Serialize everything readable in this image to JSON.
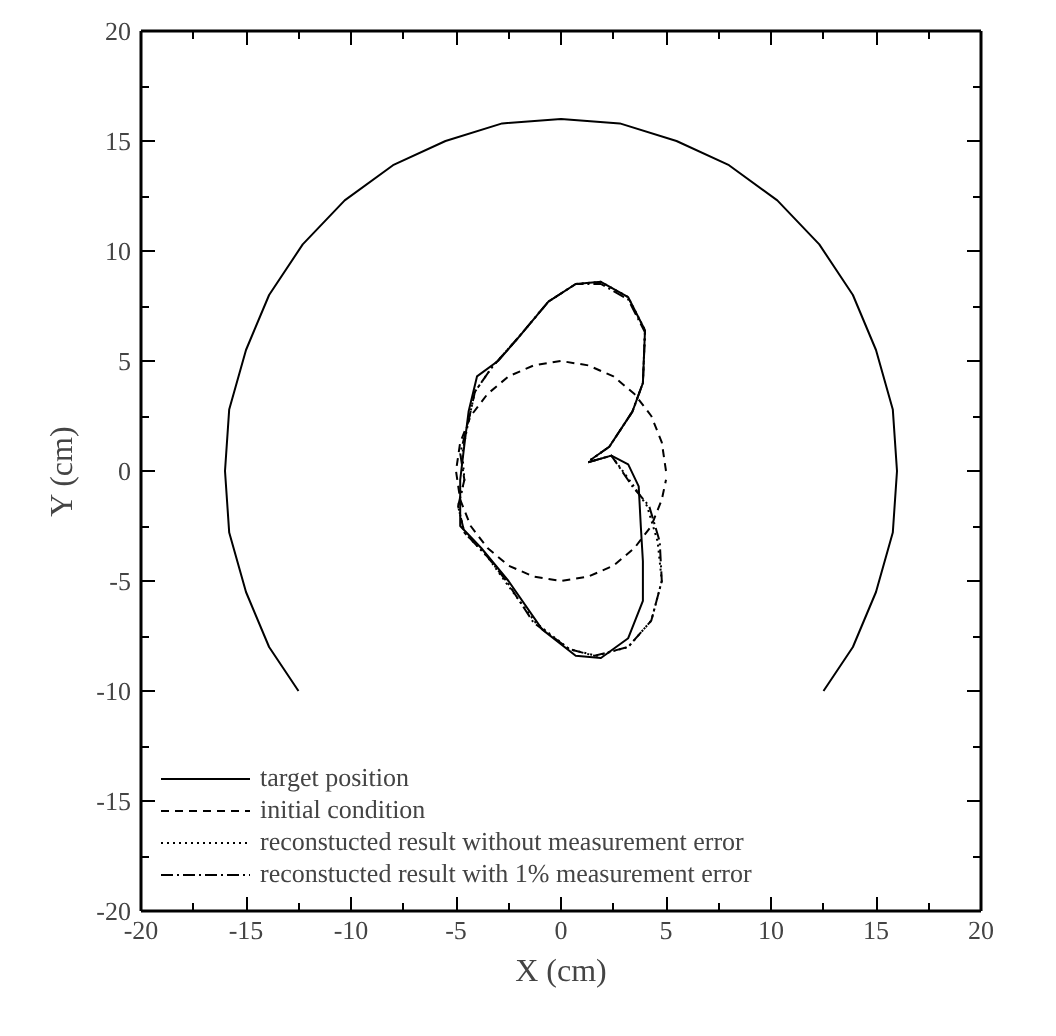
{
  "chart_data": {
    "type": "line",
    "xlabel": "X (cm)",
    "ylabel": "Y (cm)",
    "xlim": [
      -20,
      20
    ],
    "ylim": [
      -20,
      20
    ],
    "xticks": [
      -20,
      -15,
      -10,
      -5,
      0,
      5,
      10,
      15,
      20
    ],
    "yticks": [
      -20,
      -15,
      -10,
      -5,
      0,
      5,
      10,
      15,
      20
    ],
    "grid": false,
    "legend": "bottom left",
    "marker": "none",
    "series": [
      {
        "color": "#000000",
        "line_style": "solid",
        "x": [
          12.5,
          13.9,
          15,
          15.8,
          16,
          15.8,
          15,
          13.9,
          12.3,
          10.3,
          8,
          5.5,
          2.8,
          0,
          -2.8,
          -5.5,
          -8,
          -10.3,
          -12.3,
          -13.9,
          -15,
          -15.8,
          -16,
          -15.8,
          -15,
          -13.9,
          -12.5
        ],
        "values": [
          -10,
          -8,
          -5.5,
          -2.8,
          0,
          2.8,
          5.5,
          8,
          10.3,
          12.3,
          13.9,
          15,
          15.8,
          16,
          15.8,
          15,
          13.9,
          12.3,
          10.3,
          8,
          5.5,
          2.8,
          0,
          -2.8,
          -5.5,
          -8,
          -10
        ]
      },
      {
        "name": "target position",
        "color": "#000000",
        "line_style": "solid",
        "x": [
          1.3,
          2.4,
          3.2,
          3.7,
          3.8,
          3.9,
          3.9,
          3.2,
          1.9,
          0.7,
          -0.9,
          -2.5,
          -3.8,
          -4.8,
          -4.8,
          -4.6,
          -4.4,
          -4,
          -3,
          -2,
          -0.6,
          0.7,
          1.9,
          3.2,
          4,
          3.9,
          3.4,
          2.3,
          1.4
        ],
        "values": [
          0.4,
          0.7,
          0.3,
          -0.7,
          -2.5,
          -4.1,
          -5.9,
          -7.6,
          -8.5,
          -8.4,
          -7.2,
          -5,
          -3.5,
          -2.5,
          -0.4,
          1.2,
          2.7,
          4.3,
          5,
          6.1,
          7.7,
          8.5,
          8.6,
          7.9,
          6.4,
          4,
          2.7,
          1.1,
          0.5
        ]
      },
      {
        "name": "initial condition",
        "color": "#000000",
        "line_style": "dashed",
        "x": [
          5,
          4.8,
          4.3,
          3.5,
          2.5,
          1.3,
          0,
          -1.3,
          -2.5,
          -3.5,
          -4.3,
          -4.8,
          -5,
          -4.8,
          -4.3,
          -3.5,
          -2.5,
          -1.3,
          0,
          1.3,
          2.5,
          3.5,
          4.3,
          4.8,
          5
        ],
        "values": [
          0,
          1.3,
          2.5,
          3.5,
          4.3,
          4.8,
          5,
          4.8,
          4.3,
          3.5,
          2.5,
          1.3,
          0,
          -1.3,
          -2.5,
          -3.5,
          -4.3,
          -4.8,
          -5,
          -4.8,
          -4.3,
          -3.5,
          -2.5,
          -1.3,
          -0.4
        ]
      },
      {
        "name": "reconstucted result without measurement error",
        "color": "#000000",
        "line_style": "dotted",
        "x": [
          1.3,
          2.4,
          3.4,
          4.1,
          4.6,
          4.8,
          4.3,
          3.2,
          1.7,
          0.4,
          -1.2,
          -2.6,
          -3.5,
          -4.6,
          -4.9,
          -4.6,
          -4.7,
          -4.4,
          -4.1,
          -3.3,
          -2,
          -0.6,
          0.7,
          1.9,
          3.2,
          4,
          3.9,
          3.4,
          2.3,
          1.4
        ],
        "values": [
          0.4,
          0.7,
          -0.6,
          -1.6,
          -3.2,
          -5,
          -6.8,
          -8,
          -8.4,
          -8.1,
          -6.9,
          -5.1,
          -3.9,
          -2.8,
          -1.6,
          -0.4,
          0.8,
          2.3,
          3.6,
          4.7,
          6.1,
          7.7,
          8.5,
          8.6,
          7.9,
          6.4,
          4,
          2.7,
          1.1,
          0.5
        ]
      },
      {
        "name": "reconstucted result with 1% measurement error",
        "color": "#000000",
        "line_style": "dashdot",
        "x": [
          1.3,
          2.4,
          3.4,
          4.2,
          4.7,
          4.8,
          4.3,
          3.2,
          1.6,
          0.4,
          -1.3,
          -2.6,
          -3.5,
          -4.6,
          -4.9,
          -4.6,
          -4.8,
          -4.4,
          -4.1,
          -3.3,
          -2,
          -0.6,
          0.7,
          1.9,
          3.2,
          4,
          3.9,
          3.4,
          2.3,
          1.4
        ],
        "values": [
          0.4,
          0.7,
          -0.7,
          -1.6,
          -3.2,
          -5,
          -6.8,
          -8,
          -8.4,
          -8.1,
          -6.9,
          -5,
          -3.9,
          -2.8,
          -1.6,
          -0.4,
          0.8,
          2.3,
          3.6,
          4.7,
          6.1,
          7.7,
          8.5,
          8.5,
          7.8,
          6.3,
          4,
          2.7,
          1.1,
          0.5
        ]
      }
    ]
  }
}
